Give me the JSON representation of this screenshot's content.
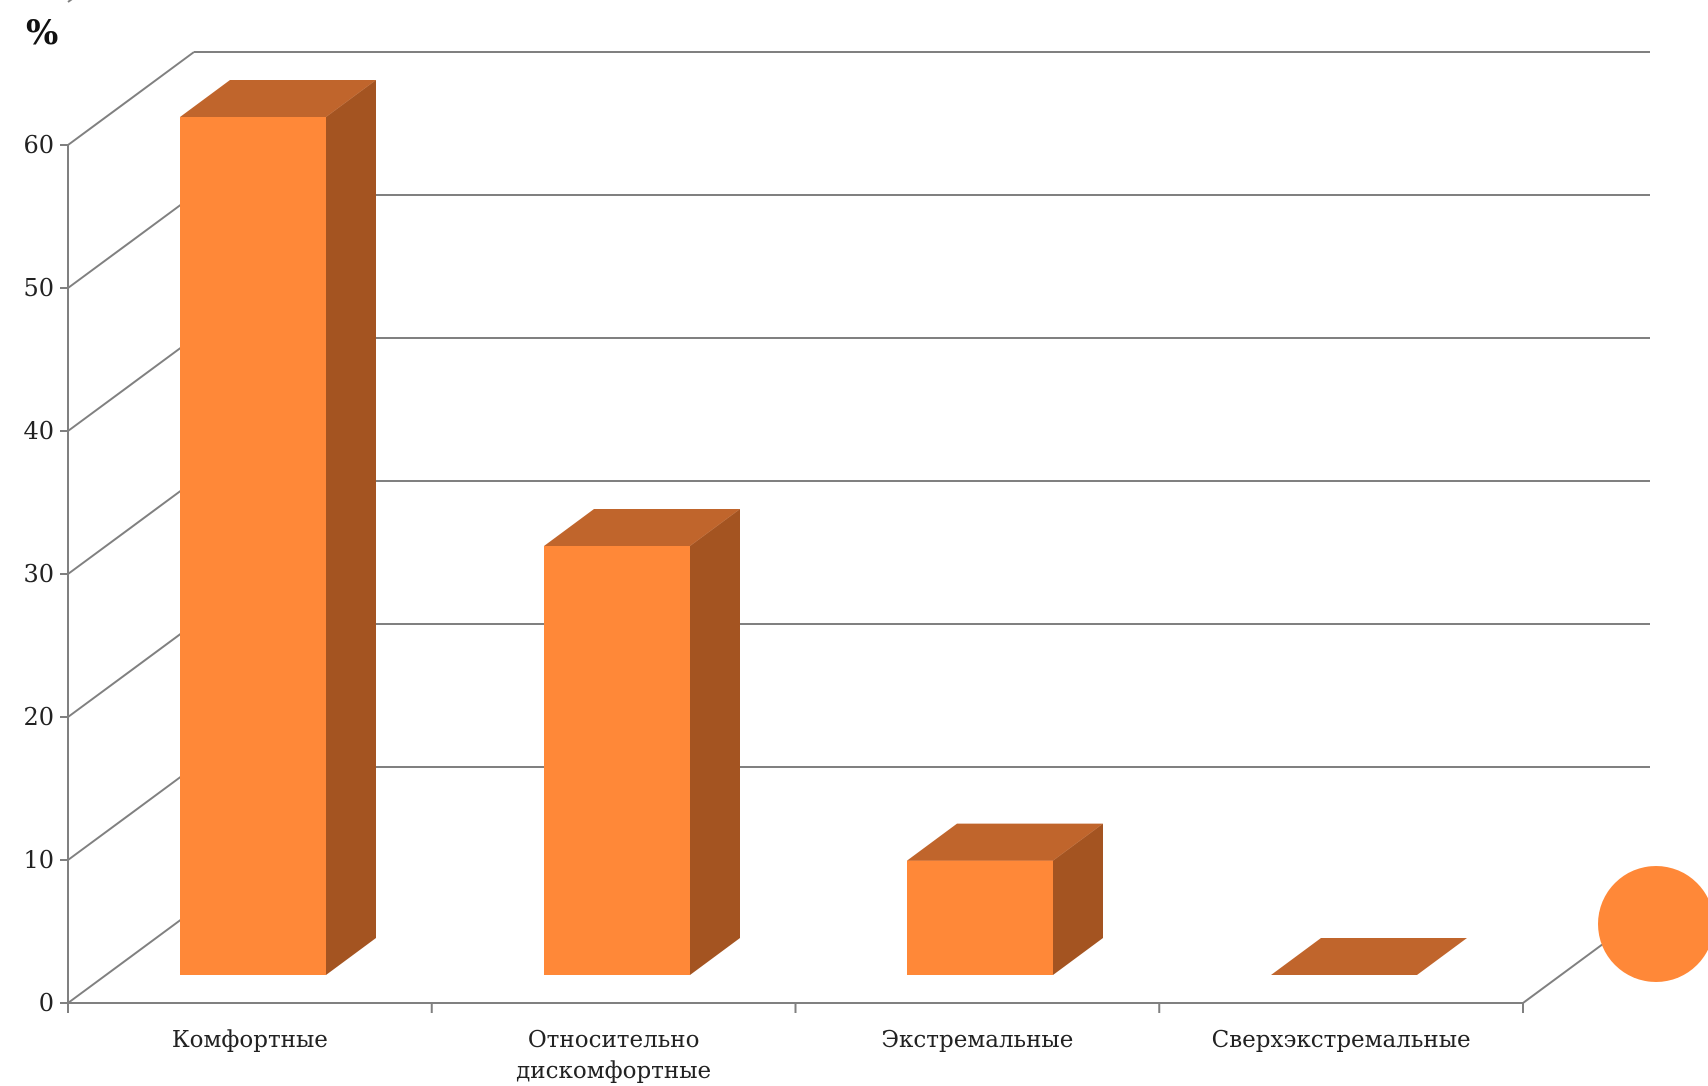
{
  "chart_data": {
    "type": "bar",
    "style": "3d-column",
    "ylabel": "%",
    "ylim": [
      0,
      60
    ],
    "yticks": [
      "0",
      "10",
      "20",
      "30",
      "40",
      "50",
      "60"
    ],
    "grid": true,
    "categories": [
      [
        "Комфортные"
      ],
      [
        "Относительно",
        "дискомфортные"
      ],
      [
        "Экстремальные"
      ],
      [
        "Сверхэкстремальные"
      ]
    ],
    "values": [
      60,
      30,
      8,
      0
    ],
    "colors": {
      "front": "#FF8838",
      "top": "#C0652C",
      "side": "#A45421",
      "grid": "#808080"
    }
  }
}
